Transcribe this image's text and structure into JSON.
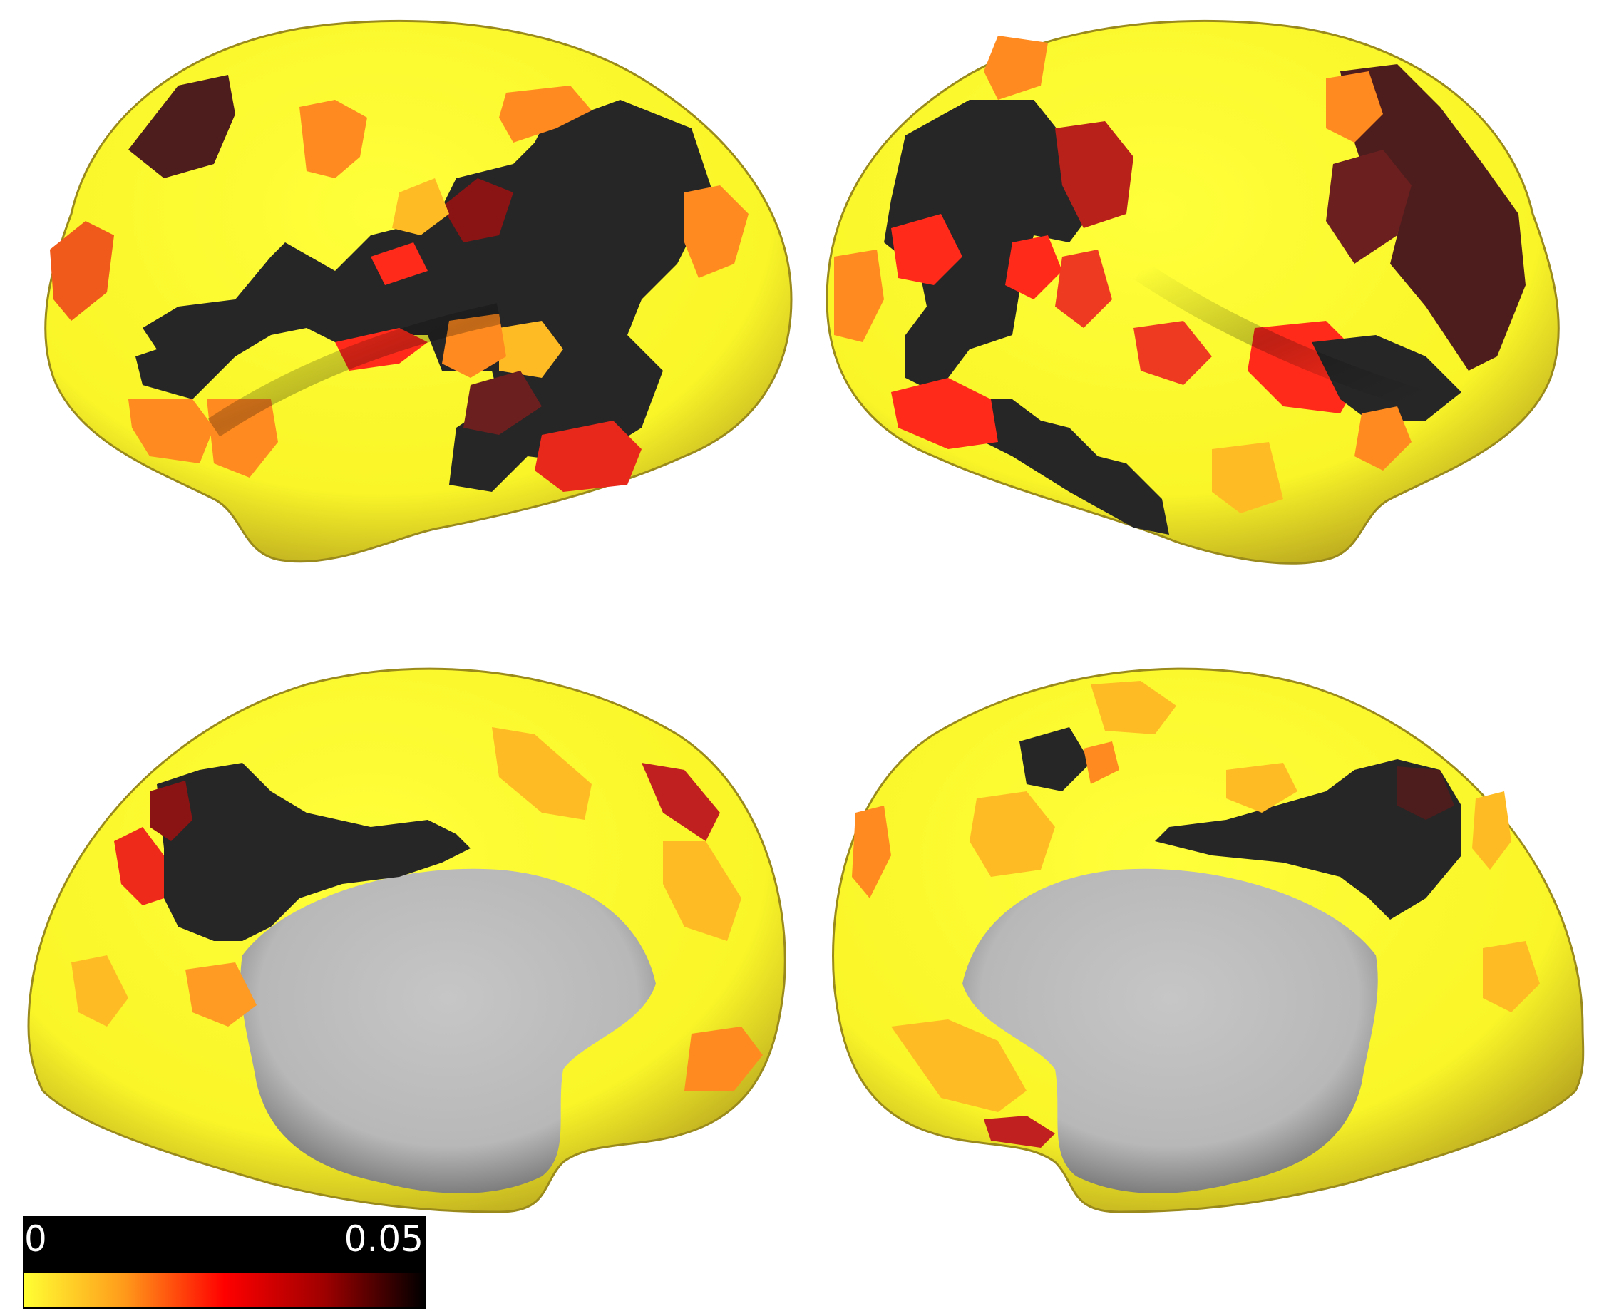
{
  "colorbar": {
    "min_label": "0",
    "max_label": "0.05",
    "label_bg": "#000000",
    "label_text_color": "#ffffff",
    "gradient_stops": [
      "#ffff33",
      "#ff9a1a",
      "#ff0000",
      "#9e0000",
      "#000000"
    ]
  },
  "colors": {
    "background": "#ffffff",
    "surface_base": "#ffff33",
    "highlight_dark": "#262626",
    "medial_wall": "#c2c2c2",
    "patch_orange": "#ff8a1f",
    "patch_light_orange": "#ffbb24",
    "patch_red": "#ff2a1a",
    "patch_dark_red": "#8a1414",
    "patch_maroon": "#4d1d1d"
  },
  "views": [
    "left-lateral",
    "right-lateral",
    "left-medial",
    "right-medial"
  ]
}
